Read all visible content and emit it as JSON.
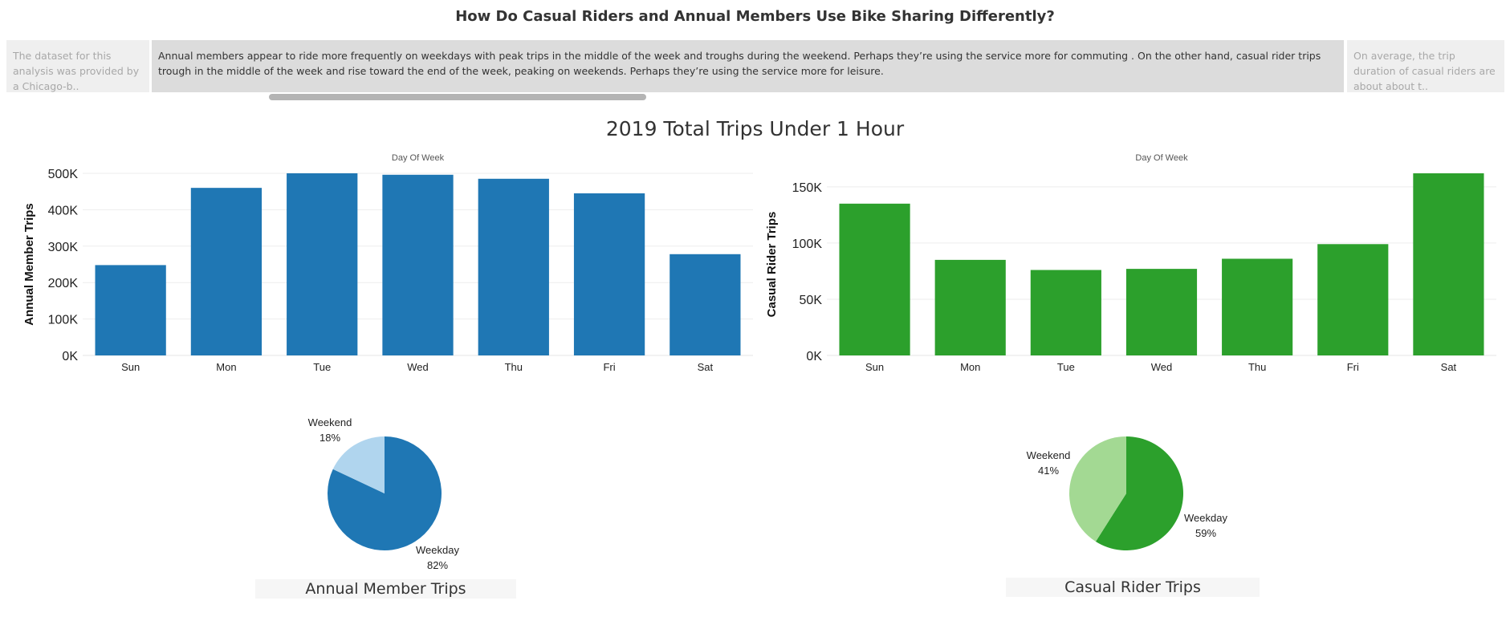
{
  "title": "How Do Casual Riders and Annual Members Use Bike Sharing Differently?",
  "story": {
    "prev_text": "The dataset for this analysis was provided by a Chicago-b..",
    "active_text": "Annual members appear to ride more frequently on weekdays with peak trips in the middle of the week and troughs during the weekend. Perhaps they’re using the service more for commuting . On the other hand, casual rider trips trough in the middle of the week and rise toward the end of the week, peaking on weekends. Perhaps they’re using the service more for leisure.",
    "next_text": "On average, the trip duration of casual riders are about about t.."
  },
  "section_title": "2019 Total Trips Under 1 Hour",
  "colors": {
    "member": "#1f77b4",
    "member_light": "#b0d5ee",
    "casual": "#2ca02c",
    "casual_light": "#a3d993"
  },
  "chart_data": [
    {
      "type": "bar",
      "title": "",
      "xlabel": "Day Of Week",
      "ylabel": "Annual Member Trips",
      "categories": [
        "Sun",
        "Mon",
        "Tue",
        "Wed",
        "Thu",
        "Fri",
        "Sat"
      ],
      "values": [
        248000,
        460000,
        500000,
        496000,
        485000,
        445000,
        278000
      ],
      "ylim": [
        0,
        500000
      ],
      "yticks": [
        0,
        100000,
        200000,
        300000,
        400000,
        500000
      ],
      "ytick_labels": [
        "0K",
        "100K",
        "200K",
        "300K",
        "400K",
        "500K"
      ],
      "grid": true,
      "color": "#1f77b4"
    },
    {
      "type": "bar",
      "title": "",
      "xlabel": "Day Of Week",
      "ylabel": "Casual Rider Trips",
      "categories": [
        "Sun",
        "Mon",
        "Tue",
        "Wed",
        "Thu",
        "Fri",
        "Sat"
      ],
      "values": [
        135000,
        85000,
        76000,
        77000,
        86000,
        99000,
        162000
      ],
      "ylim": [
        0,
        162000
      ],
      "yticks": [
        0,
        50000,
        100000,
        150000
      ],
      "ytick_labels": [
        "0K",
        "50K",
        "100K",
        "150K"
      ],
      "grid": true,
      "color": "#2ca02c"
    },
    {
      "type": "pie",
      "title": "Annual Member Trips",
      "labels": [
        "Weekday",
        "Weekend"
      ],
      "values": [
        82,
        18
      ],
      "value_labels": [
        "82%",
        "18%"
      ],
      "colors": [
        "#1f77b4",
        "#b0d5ee"
      ]
    },
    {
      "type": "pie",
      "title": "Casual Rider Trips",
      "labels": [
        "Weekday",
        "Weekend"
      ],
      "values": [
        59,
        41
      ],
      "value_labels": [
        "59%",
        "41%"
      ],
      "colors": [
        "#2ca02c",
        "#a3d993"
      ]
    }
  ]
}
